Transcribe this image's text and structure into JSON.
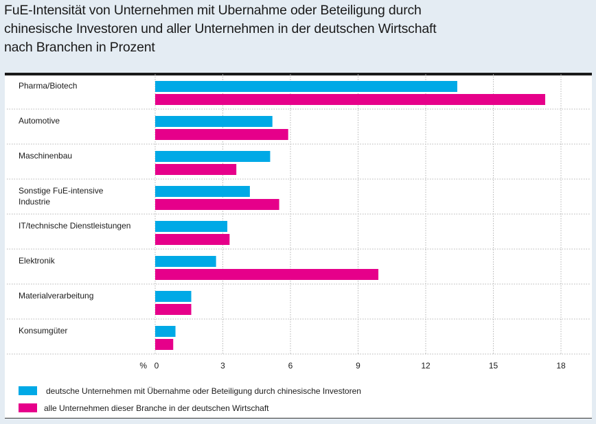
{
  "title_lines": [
    "FuE-Intensität von Unternehmen mit Ubernahme oder Beteiligung durch",
    "chinesische Investoren und aller Unternehmen in der deutschen Wirtschaft",
    "nach Branchen in Prozent"
  ],
  "colors": {
    "series1": "#00a9e6",
    "series2": "#e6008a"
  },
  "chart_data": {
    "type": "bar",
    "orientation": "horizontal",
    "title": "FuE-Intensität von Unternehmen mit Ubernahme oder Beteiligung durch chinesische Investoren und aller Unternehmen in der deutschen Wirtschaft nach Branchen in Prozent",
    "categories": [
      [
        "Pharma/Biotech"
      ],
      [
        "Automotive"
      ],
      [
        "Maschinenbau"
      ],
      [
        "Sonstige FuE-intensive",
        "Industrie"
      ],
      [
        "IT/technische Dienstleistungen"
      ],
      [
        "Elektronik"
      ],
      [
        "Materialverarbeitung"
      ],
      [
        "Konsumgüter"
      ]
    ],
    "series": [
      {
        "name": "deutsche Unternehmen mit Übernahme oder Beteiligung durch chinesische Investoren",
        "values": [
          13.4,
          5.2,
          5.1,
          4.2,
          3.2,
          2.7,
          1.6,
          0.9
        ]
      },
      {
        "name": "alle Unternehmen dieser Branche in der deutschen Wirtschaft",
        "values": [
          17.3,
          5.9,
          3.6,
          5.5,
          3.3,
          9.9,
          1.6,
          0.8
        ]
      }
    ],
    "xlabel": "%",
    "xlim": [
      0,
      18
    ],
    "xticks": [
      "0",
      "3",
      "6",
      "9",
      "12",
      "15",
      "18"
    ],
    "grid": true,
    "legend": "bottom"
  }
}
